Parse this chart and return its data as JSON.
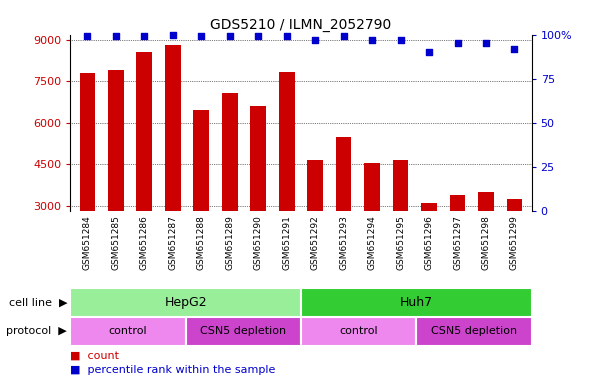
{
  "title": "GDS5210 / ILMN_2052790",
  "samples": [
    "GSM651284",
    "GSM651285",
    "GSM651286",
    "GSM651287",
    "GSM651288",
    "GSM651289",
    "GSM651290",
    "GSM651291",
    "GSM651292",
    "GSM651293",
    "GSM651294",
    "GSM651295",
    "GSM651296",
    "GSM651297",
    "GSM651298",
    "GSM651299"
  ],
  "counts": [
    7800,
    7920,
    8580,
    8820,
    6480,
    7080,
    6600,
    7860,
    4650,
    5490,
    4530,
    4650,
    3090,
    3390,
    3480,
    3240
  ],
  "percentile_ranks": [
    99,
    99,
    99,
    100,
    99,
    99,
    99,
    99,
    97,
    99,
    97,
    97,
    90,
    95,
    95,
    92
  ],
  "ylim_left": [
    2800,
    9200
  ],
  "ylim_right": [
    0,
    100
  ],
  "yticks_left": [
    3000,
    4500,
    6000,
    7500,
    9000
  ],
  "yticks_right": [
    0,
    25,
    50,
    75,
    100
  ],
  "bar_color": "#cc0000",
  "dot_color": "#0000cc",
  "plot_bg": "#ffffff",
  "tick_bg": "#d8d8d8",
  "cell_line_hepg2_color": "#99ee99",
  "cell_line_huh7_color": "#33cc33",
  "protocol_control_color": "#ee88ee",
  "protocol_csn5_color": "#cc44cc",
  "cell_line_label": "cell line",
  "protocol_label": "protocol",
  "cell_line_groups": [
    {
      "label": "HepG2",
      "start": 0,
      "end": 8
    },
    {
      "label": "Huh7",
      "start": 8,
      "end": 16
    }
  ],
  "protocol_groups": [
    {
      "label": "control",
      "start": 0,
      "end": 4
    },
    {
      "label": "CSN5 depletion",
      "start": 4,
      "end": 8
    },
    {
      "label": "control",
      "start": 8,
      "end": 12
    },
    {
      "label": "CSN5 depletion",
      "start": 12,
      "end": 16
    }
  ],
  "legend_count_label": "count",
  "legend_percentile_label": "percentile rank within the sample",
  "background_color": "#ffffff"
}
